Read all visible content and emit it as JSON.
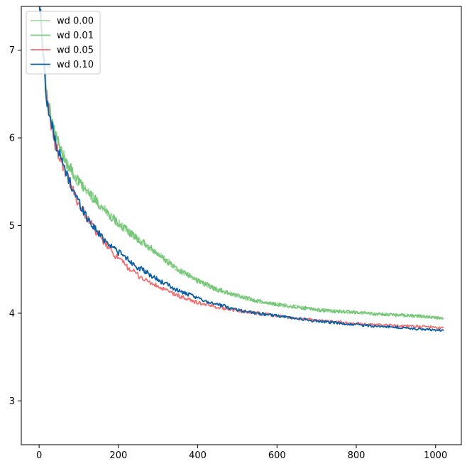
{
  "chart_data": {
    "type": "line",
    "title": "",
    "xlabel": "",
    "ylabel": "",
    "xlim": [
      -45,
      1065
    ],
    "ylim": [
      2.5,
      7.5
    ],
    "xticks": [
      0,
      200,
      400,
      600,
      800,
      1000
    ],
    "yticks": [
      3,
      4,
      5,
      6,
      7
    ],
    "legend_position": "top-left",
    "grid": false,
    "series": [
      {
        "name": "wd 0.00",
        "color": "#a8dba8",
        "x": [
          0,
          10,
          20,
          30,
          40,
          50,
          60,
          70,
          80,
          90,
          100,
          120,
          140,
          160,
          180,
          200,
          225,
          250,
          275,
          300,
          350,
          400,
          450,
          500,
          550,
          600,
          650,
          700,
          750,
          800,
          850,
          900,
          950,
          1000,
          1020
        ],
        "y": [
          7.6,
          7.0,
          6.45,
          6.22,
          6.05,
          5.92,
          5.8,
          5.72,
          5.64,
          5.56,
          5.5,
          5.4,
          5.3,
          5.2,
          5.11,
          5.03,
          4.93,
          4.84,
          4.76,
          4.67,
          4.5,
          4.37,
          4.27,
          4.2,
          4.14,
          4.1,
          4.07,
          4.04,
          4.02,
          4.01,
          3.99,
          3.98,
          3.97,
          3.95,
          3.94
        ]
      },
      {
        "name": "wd 0.01",
        "color": "#77c779",
        "x": [
          0,
          10,
          20,
          30,
          40,
          50,
          60,
          70,
          80,
          90,
          100,
          120,
          140,
          160,
          180,
          200,
          225,
          250,
          275,
          300,
          350,
          400,
          450,
          500,
          550,
          600,
          650,
          700,
          750,
          800,
          850,
          900,
          950,
          1000,
          1020
        ],
        "y": [
          7.6,
          7.0,
          6.45,
          6.22,
          6.05,
          5.92,
          5.8,
          5.72,
          5.64,
          5.56,
          5.5,
          5.4,
          5.3,
          5.2,
          5.11,
          5.03,
          4.93,
          4.84,
          4.76,
          4.67,
          4.5,
          4.37,
          4.27,
          4.2,
          4.14,
          4.1,
          4.07,
          4.04,
          4.02,
          4.01,
          3.99,
          3.98,
          3.97,
          3.95,
          3.94
        ]
      },
      {
        "name": "wd 0.05",
        "color": "#f07070",
        "x": [
          0,
          10,
          20,
          30,
          40,
          50,
          60,
          70,
          80,
          90,
          100,
          120,
          140,
          160,
          180,
          200,
          225,
          250,
          275,
          300,
          350,
          400,
          450,
          500,
          550,
          600,
          650,
          700,
          750,
          800,
          850,
          900,
          950,
          1000,
          1020
        ],
        "y": [
          7.6,
          7.0,
          6.4,
          6.15,
          5.95,
          5.8,
          5.67,
          5.56,
          5.45,
          5.35,
          5.25,
          5.1,
          4.96,
          4.83,
          4.72,
          4.62,
          4.52,
          4.43,
          4.36,
          4.3,
          4.2,
          4.12,
          4.07,
          4.03,
          4.0,
          3.97,
          3.94,
          3.92,
          3.9,
          3.88,
          3.87,
          3.86,
          3.85,
          3.84,
          3.83
        ]
      },
      {
        "name": "wd 0.10",
        "color": "#0b5fa5",
        "x": [
          0,
          10,
          20,
          30,
          40,
          50,
          60,
          70,
          80,
          90,
          100,
          120,
          140,
          160,
          180,
          200,
          225,
          250,
          275,
          300,
          350,
          400,
          450,
          500,
          550,
          600,
          650,
          700,
          750,
          800,
          850,
          900,
          950,
          1000,
          1020
        ],
        "y": [
          7.6,
          7.0,
          6.4,
          6.18,
          5.98,
          5.83,
          5.7,
          5.58,
          5.47,
          5.37,
          5.27,
          5.1,
          4.97,
          4.86,
          4.78,
          4.7,
          4.61,
          4.52,
          4.45,
          4.38,
          4.26,
          4.17,
          4.1,
          4.04,
          4.0,
          3.97,
          3.94,
          3.91,
          3.89,
          3.87,
          3.85,
          3.84,
          3.82,
          3.81,
          3.8
        ]
      }
    ]
  }
}
